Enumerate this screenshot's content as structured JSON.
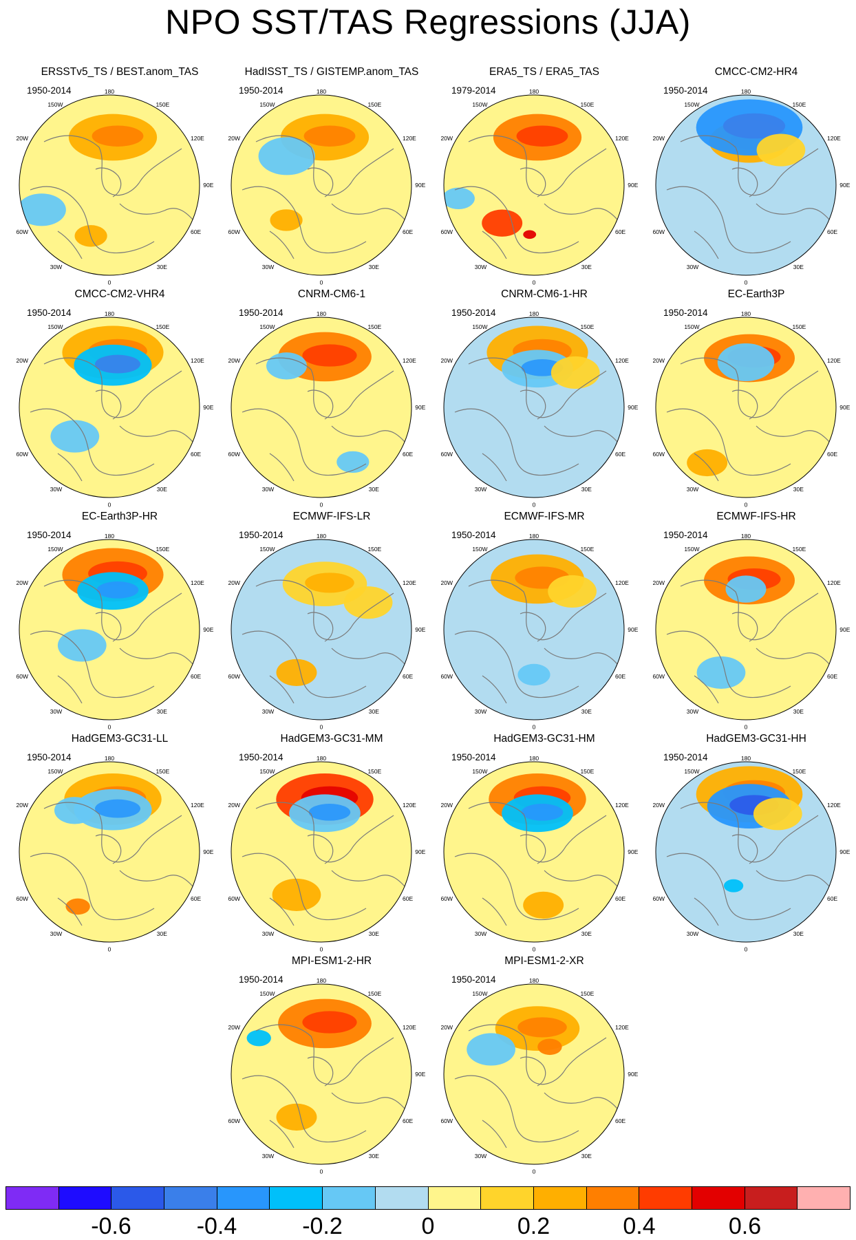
{
  "title": "NPO SST/TAS Regressions (JJA)",
  "map_labels": {
    "lon_top": "180",
    "lon_150w": "150W",
    "lon_150e": "150E",
    "lon_120w": "120W",
    "lon_120e": "120E",
    "lon_90w": "90W",
    "lon_90e": "90E",
    "lon_60w": "60W",
    "lon_60e": "60E",
    "lon_30w": "30W",
    "lon_30e": "30E",
    "lon_bottom": "0"
  },
  "panels": [
    {
      "title": "ERSSTv5_TS / BEST.anom_TAS",
      "years": "1950-2014",
      "background": "#FFF58C",
      "anomalies": [
        {
          "type": "arc",
          "level": 0.2,
          "r": 0.68
        },
        {
          "type": "patch",
          "level": -0.15,
          "ang": 200,
          "r": 0.8,
          "size": 0.3
        },
        {
          "type": "patch",
          "level": 0.2,
          "ang": 250,
          "r": 0.6,
          "size": 0.2
        }
      ]
    },
    {
      "title": "HadISST_TS / GISTEMP.anom_TAS",
      "years": "1950-2014",
      "background": "#FFF58C",
      "anomalies": [
        {
          "type": "arc",
          "level": 0.25,
          "r": 0.68
        },
        {
          "type": "patch",
          "level": -0.15,
          "ang": 140,
          "r": 0.5,
          "size": 0.35
        },
        {
          "type": "patch",
          "level": 0.25,
          "ang": 225,
          "r": 0.55,
          "size": 0.2
        }
      ]
    },
    {
      "title": "ERA5_TS / ERA5_TAS",
      "years": "1979-2014",
      "background": "#FFF58C",
      "anomalies": [
        {
          "type": "arc",
          "level": 0.35,
          "r": 0.68
        },
        {
          "type": "patch",
          "level": 0.4,
          "ang": 230,
          "r": 0.55,
          "size": 0.25
        },
        {
          "type": "patch",
          "level": 0.5,
          "ang": 265,
          "r": 0.55,
          "size": 0.08
        },
        {
          "type": "patch",
          "level": -0.15,
          "ang": 190,
          "r": 0.85,
          "size": 0.2
        }
      ]
    },
    {
      "title": "CMCC-CM2-HR4",
      "years": "1950-2014",
      "background": "#B2DCF0",
      "anomalies": [
        {
          "type": "arc",
          "level": 0.25,
          "r": 0.62
        },
        {
          "type": "arc",
          "level": -0.35,
          "r": 0.82
        },
        {
          "type": "patch",
          "level": 0.1,
          "ang": 45,
          "r": 0.55,
          "size": 0.3
        }
      ]
    },
    {
      "title": "CMCC-CM2-VHR4",
      "years": "1950-2014",
      "background": "#FFF58C",
      "anomalies": [
        {
          "type": "arc",
          "level": 0.25,
          "r": 0.78
        },
        {
          "type": "arc",
          "level": -0.3,
          "r": 0.6
        },
        {
          "type": "patch",
          "level": -0.15,
          "ang": 220,
          "r": 0.5,
          "size": 0.3
        }
      ]
    },
    {
      "title": "CNRM-CM6-1",
      "years": "1950-2014",
      "background": "#FFF58C",
      "anomalies": [
        {
          "type": "arc",
          "level": 0.3,
          "r": 0.72
        },
        {
          "type": "patch",
          "level": -0.15,
          "ang": 130,
          "r": 0.6,
          "size": 0.25
        },
        {
          "type": "patch",
          "level": -0.15,
          "ang": 300,
          "r": 0.7,
          "size": 0.2
        }
      ]
    },
    {
      "title": "CNRM-CM6-1-HR",
      "years": "1950-2014",
      "background": "#B2DCF0",
      "anomalies": [
        {
          "type": "arc",
          "level": 0.2,
          "r": 0.78
        },
        {
          "type": "arc",
          "level": -0.2,
          "r": 0.55
        },
        {
          "type": "patch",
          "level": 0.1,
          "ang": 40,
          "r": 0.6,
          "size": 0.3
        }
      ]
    },
    {
      "title": "EC-Earth3P",
      "years": "1950-2014",
      "background": "#FFF58C",
      "anomalies": [
        {
          "type": "arc",
          "level": 0.3,
          "r": 0.7
        },
        {
          "type": "patch",
          "level": 0.2,
          "ang": 235,
          "r": 0.75,
          "size": 0.25
        },
        {
          "type": "patch",
          "level": -0.15,
          "ang": 90,
          "r": 0.5,
          "size": 0.35
        }
      ]
    },
    {
      "title": "EC-Earth3P-HR",
      "years": "1950-2014",
      "background": "#FFF58C",
      "anomalies": [
        {
          "type": "arc",
          "level": 0.35,
          "r": 0.78
        },
        {
          "type": "arc",
          "level": -0.25,
          "r": 0.55
        },
        {
          "type": "patch",
          "level": -0.15,
          "ang": 210,
          "r": 0.35,
          "size": 0.3
        }
      ]
    },
    {
      "title": "ECMWF-IFS-LR",
      "years": "1950-2014",
      "background": "#B2DCF0",
      "anomalies": [
        {
          "type": "arc",
          "level": 0.1,
          "r": 0.65
        },
        {
          "type": "patch",
          "level": 0.2,
          "ang": 240,
          "r": 0.55,
          "size": 0.25
        },
        {
          "type": "patch",
          "level": 0.1,
          "ang": 30,
          "r": 0.6,
          "size": 0.3
        }
      ]
    },
    {
      "title": "ECMWF-IFS-MR",
      "years": "1950-2014",
      "background": "#B2DCF0",
      "anomalies": [
        {
          "type": "arc",
          "level": 0.2,
          "r": 0.72
        },
        {
          "type": "patch",
          "level": 0.1,
          "ang": 45,
          "r": 0.6,
          "size": 0.3
        },
        {
          "type": "patch",
          "level": -0.15,
          "ang": 270,
          "r": 0.5,
          "size": 0.2
        }
      ]
    },
    {
      "title": "ECMWF-IFS-HR",
      "years": "1950-2014",
      "background": "#FFF58C",
      "anomalies": [
        {
          "type": "arc",
          "level": 0.35,
          "r": 0.7
        },
        {
          "type": "patch",
          "level": -0.15,
          "ang": 240,
          "r": 0.55,
          "size": 0.3
        },
        {
          "type": "patch",
          "level": -0.15,
          "ang": 90,
          "r": 0.45,
          "size": 0.25
        }
      ]
    },
    {
      "title": "HadGEM3-GC31-LL",
      "years": "1950-2014",
      "background": "#FFF58C",
      "anomalies": [
        {
          "type": "arc",
          "level": 0.2,
          "r": 0.75
        },
        {
          "type": "arc",
          "level": -0.2,
          "r": 0.6
        },
        {
          "type": "patch",
          "level": 0.35,
          "ang": 240,
          "r": 0.7,
          "size": 0.15
        },
        {
          "type": "patch",
          "level": -0.15,
          "ang": 130,
          "r": 0.6,
          "size": 0.25
        }
      ]
    },
    {
      "title": "HadGEM3-GC31-MM",
      "years": "1950-2014",
      "background": "#FFF58C",
      "anomalies": [
        {
          "type": "arc",
          "level": 0.45,
          "r": 0.75
        },
        {
          "type": "arc",
          "level": -0.2,
          "r": 0.55
        },
        {
          "type": "patch",
          "level": 0.2,
          "ang": 240,
          "r": 0.55,
          "size": 0.3
        }
      ]
    },
    {
      "title": "HadGEM3-GC31-HM",
      "years": "1950-2014",
      "background": "#FFF58C",
      "anomalies": [
        {
          "type": "arc",
          "level": 0.3,
          "r": 0.75
        },
        {
          "type": "arc",
          "level": -0.25,
          "r": 0.55
        },
        {
          "type": "patch",
          "level": 0.2,
          "ang": 280,
          "r": 0.6,
          "size": 0.25
        }
      ]
    },
    {
      "title": "HadGEM3-GC31-HH",
      "years": "1950-2014",
      "background": "#B2DCF0",
      "anomalies": [
        {
          "type": "arc",
          "level": 0.2,
          "r": 0.82
        },
        {
          "type": "arc",
          "level": -0.4,
          "r": 0.65
        },
        {
          "type": "patch",
          "level": 0.1,
          "ang": 50,
          "r": 0.55,
          "size": 0.3
        },
        {
          "type": "patch",
          "level": -0.3,
          "ang": 250,
          "r": 0.4,
          "size": 0.12
        }
      ]
    },
    {
      "title": "MPI-ESM1-2-HR",
      "years": "1950-2014",
      "background": "#FFF58C",
      "anomalies": [
        {
          "type": "arc",
          "level": 0.3,
          "r": 0.72
        },
        {
          "type": "patch",
          "level": -0.25,
          "ang": 150,
          "r": 0.8,
          "size": 0.15
        },
        {
          "type": "patch",
          "level": 0.2,
          "ang": 240,
          "r": 0.55,
          "size": 0.25
        }
      ]
    },
    {
      "title": "MPI-ESM1-2-XR",
      "years": "1950-2014",
      "background": "#FFF58C",
      "anomalies": [
        {
          "type": "arc",
          "level": 0.2,
          "r": 0.65
        },
        {
          "type": "patch",
          "level": -0.15,
          "ang": 150,
          "r": 0.55,
          "size": 0.3
        },
        {
          "type": "patch",
          "level": 0.3,
          "ang": 60,
          "r": 0.35,
          "size": 0.15
        }
      ]
    }
  ],
  "colorbar": {
    "colors": [
      "#7F2BF5",
      "#1E0CFF",
      "#2B59E9",
      "#3A7FEA",
      "#2896FC",
      "#00C0FA",
      "#66C8F5",
      "#B2DCF0",
      "#FFF58C",
      "#FFD42B",
      "#FFAF00",
      "#FF7F00",
      "#FF3C00",
      "#E30000",
      "#C81E1E",
      "#FFB0B0"
    ],
    "levels": [
      -0.7,
      -0.6,
      -0.5,
      -0.4,
      -0.3,
      -0.2,
      -0.1,
      0,
      0.1,
      0.2,
      0.3,
      0.4,
      0.5,
      0.6,
      0.7
    ],
    "tick_labels": [
      "-0.6",
      "-0.4",
      "-0.2",
      "0",
      "0.2",
      "0.4",
      "0.6"
    ]
  }
}
